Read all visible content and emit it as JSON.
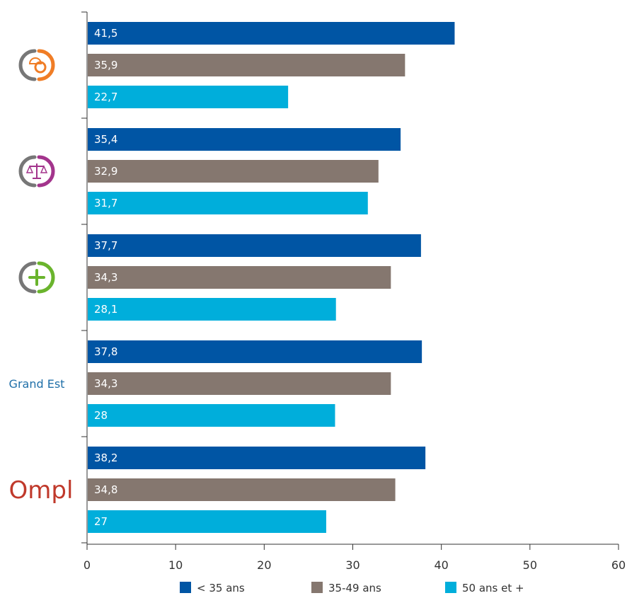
{
  "chart_data": {
    "type": "bar",
    "orientation": "horizontal",
    "categories": [
      {
        "label": "",
        "icon": "gear-helmet-icon",
        "icon_color": "#f07d26"
      },
      {
        "label": "",
        "icon": "scales-of-justice-icon",
        "icon_color": "#a3348c"
      },
      {
        "label": "",
        "icon": "medical-plus-icon",
        "icon_color": "#6ab42d"
      },
      {
        "label": "Grand Est",
        "icon": "",
        "icon_color": "#1f6fa8"
      },
      {
        "label": "Ompl",
        "icon": "ompl-logo",
        "icon_color": "#c0392b"
      }
    ],
    "series": [
      {
        "name": "< 35 ans",
        "color": "#0055a4",
        "values": [
          41.5,
          35.4,
          37.7,
          37.8,
          38.2
        ],
        "labels": [
          "41,5",
          "35,4",
          "37,7",
          "37,8",
          "38,2"
        ]
      },
      {
        "name": "35-49 ans",
        "color": "#85776f",
        "values": [
          35.9,
          32.9,
          34.3,
          34.3,
          34.8
        ],
        "labels": [
          "35,9",
          "32,9",
          "34,3",
          "34,3",
          "34,8"
        ]
      },
      {
        "name": "50 ans et +",
        "color": "#00aedb",
        "values": [
          22.7,
          31.7,
          28.1,
          28,
          27
        ],
        "labels": [
          "22,7",
          "31,7",
          "28,1",
          "28",
          "27"
        ]
      }
    ],
    "xlim": [
      0,
      60
    ],
    "xticks": [
      "0",
      "10",
      "20",
      "30",
      "40",
      "50",
      "60"
    ],
    "grid": false,
    "legend_position": "bottom"
  }
}
